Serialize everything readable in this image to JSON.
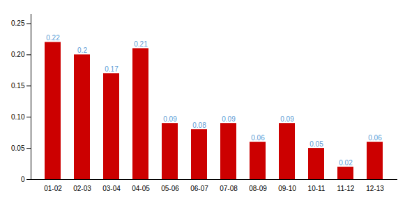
{
  "chart_data": {
    "type": "bar",
    "categories": [
      "01-02",
      "02-03",
      "03-04",
      "04-05",
      "05-06",
      "06-07",
      "07-08",
      "08-09",
      "09-10",
      "10-11",
      "11-12",
      "12-13"
    ],
    "values": [
      0.22,
      0.2,
      0.17,
      0.21,
      0.09,
      0.08,
      0.09,
      0.06,
      0.09,
      0.05,
      0.02,
      0.06
    ],
    "color": "#cc0000",
    "ylim": [
      0,
      0.265
    ],
    "yticks": [
      0,
      0.05,
      {
        "value": 0.1,
        "label": "0.10"
      },
      0.15,
      {
        "value": 0.2,
        "label": "0.20"
      },
      0.25
    ],
    "data_labels": true,
    "grid": false
  }
}
